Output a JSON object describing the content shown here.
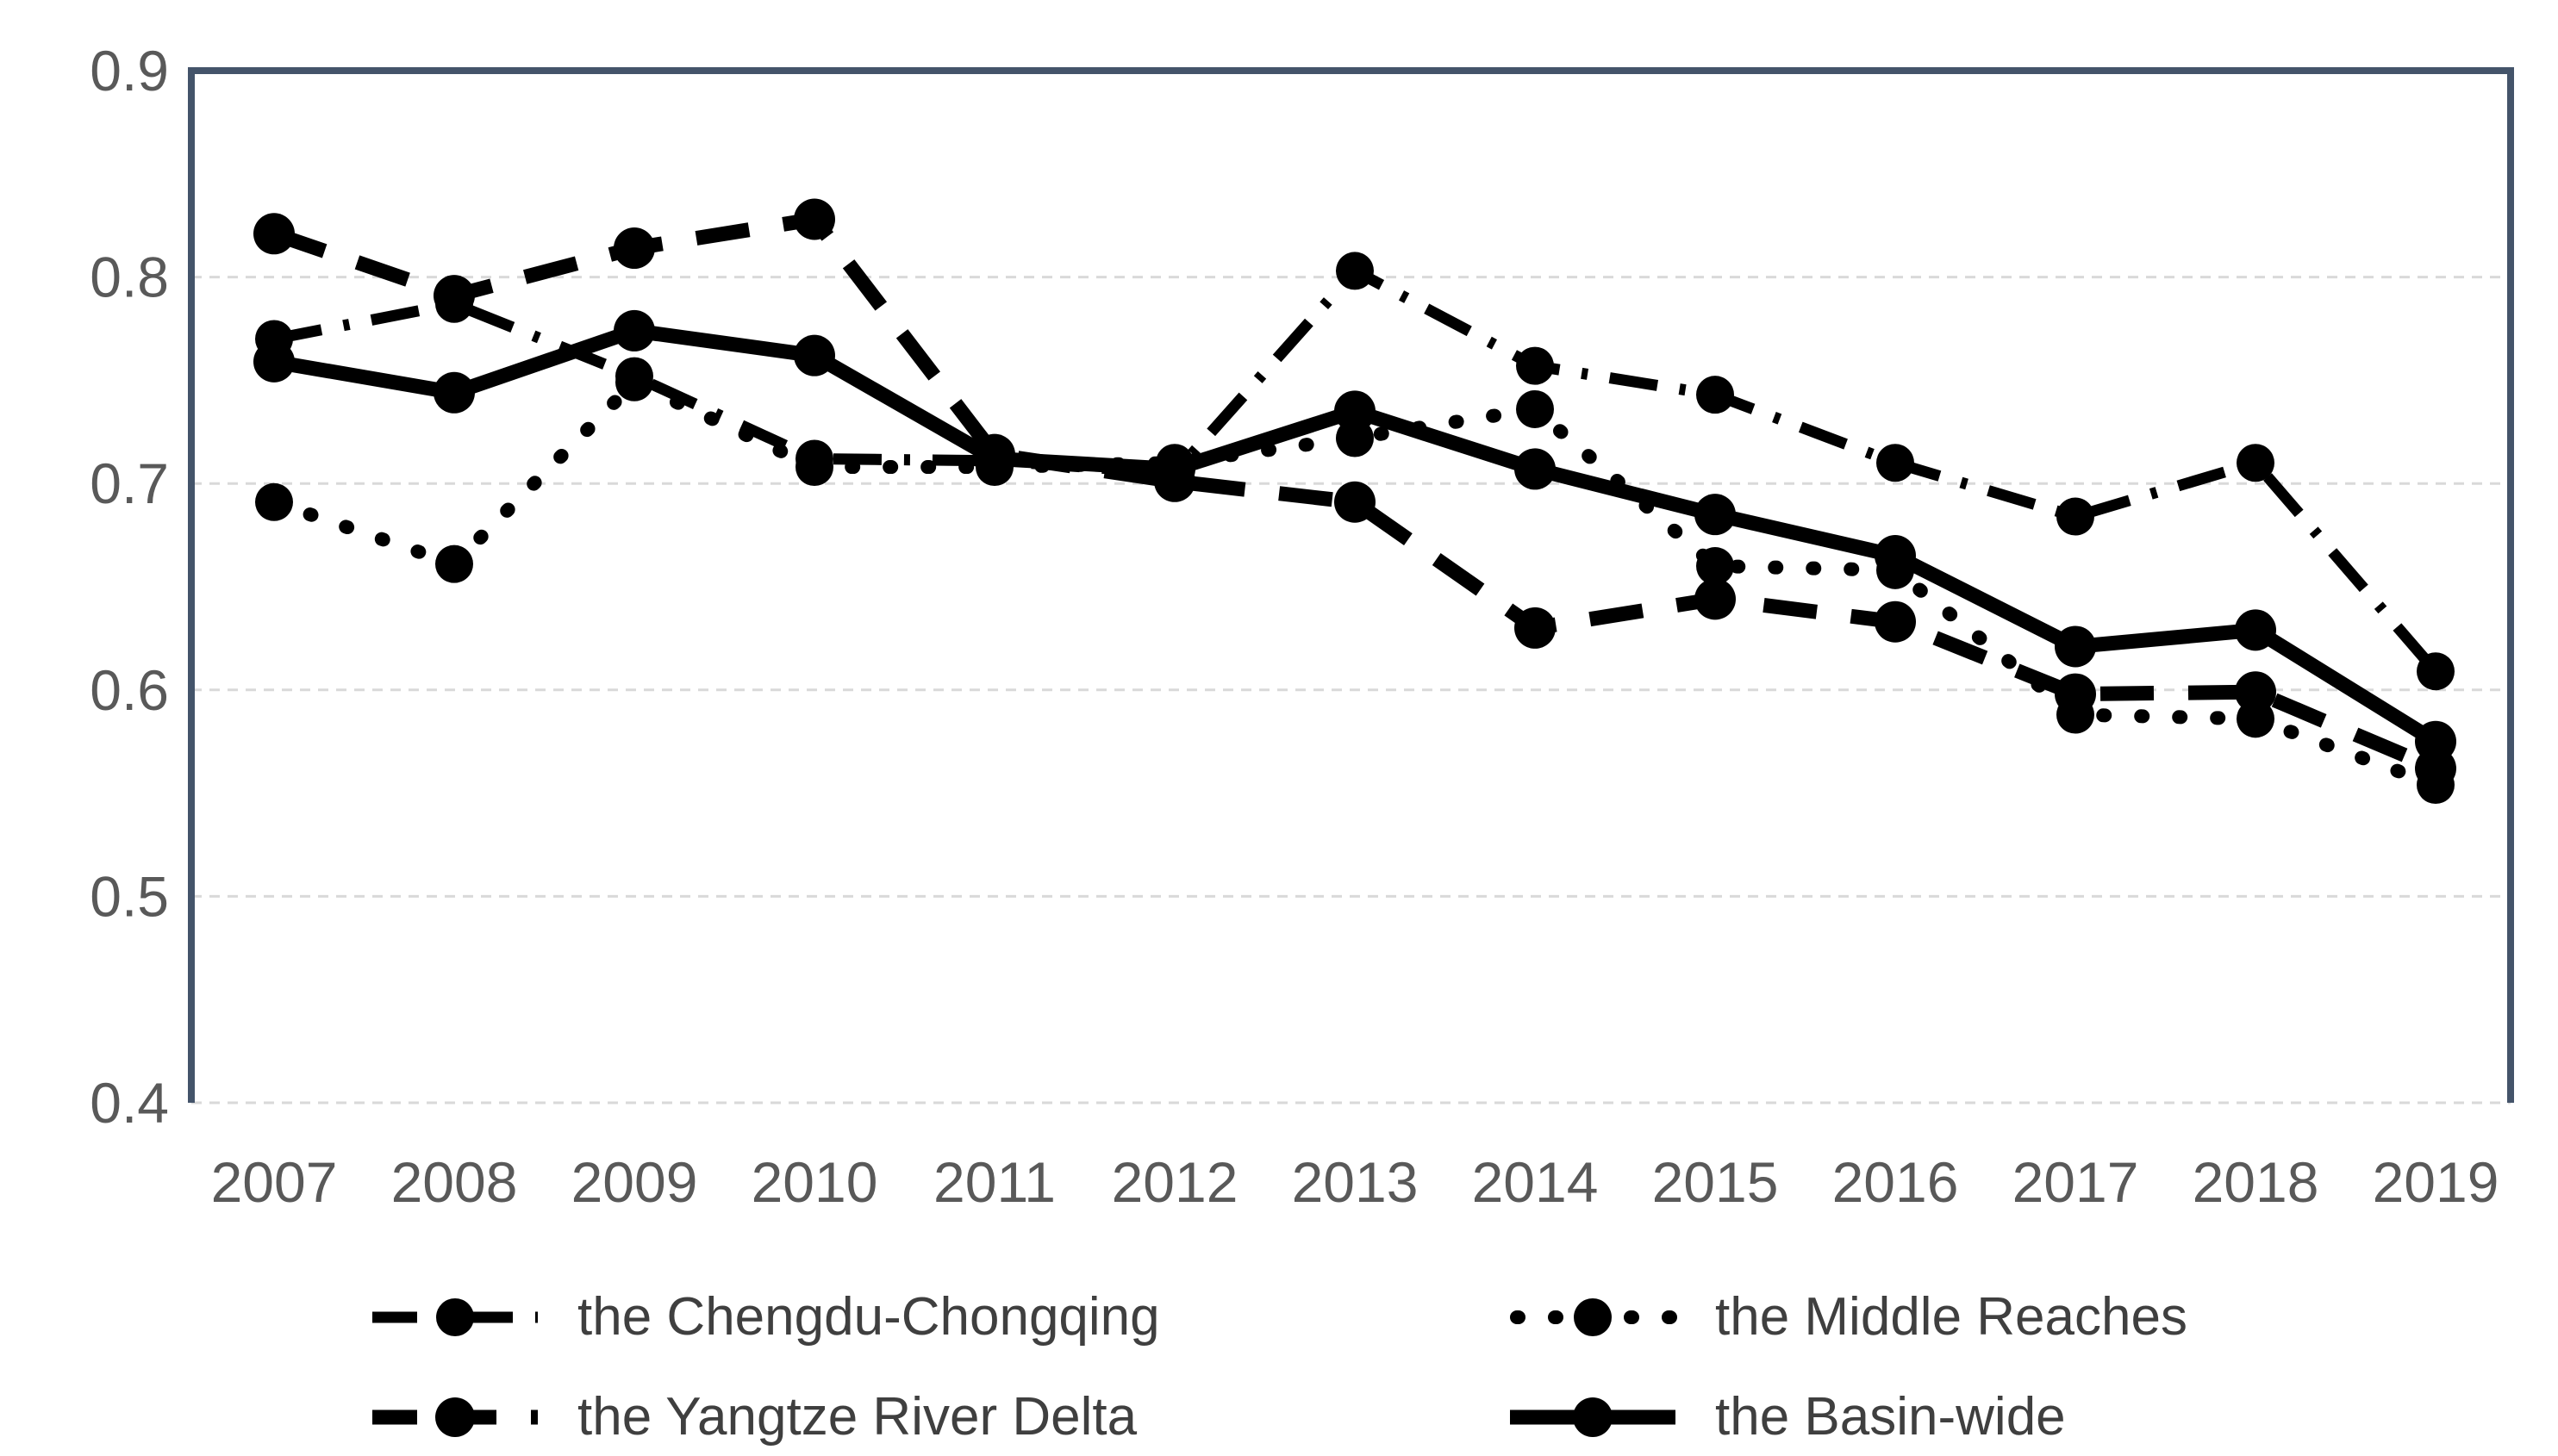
{
  "chart_data": {
    "type": "line",
    "title": "",
    "xlabel": "",
    "ylabel": "",
    "x": [
      "2007",
      "2008",
      "2009",
      "2010",
      "2011",
      "2012",
      "2013",
      "2014",
      "2015",
      "2016",
      "2017",
      "2018",
      "2019"
    ],
    "series": [
      {
        "name": "the Chengdu-Chongqing",
        "style": "dashdot",
        "color": "#000000",
        "values": [
          0.77,
          0.787,
          0.752,
          0.712,
          0.711,
          0.705,
          0.803,
          0.757,
          0.743,
          0.71,
          0.684,
          0.71,
          0.609
        ]
      },
      {
        "name": "the Middle Reaches",
        "style": "dotted",
        "color": "#000000",
        "values": [
          0.691,
          0.661,
          0.749,
          0.708,
          0.708,
          0.71,
          0.722,
          0.736,
          0.66,
          0.658,
          0.588,
          0.586,
          0.554
        ]
      },
      {
        "name": "the Yangtze River Delta",
        "style": "dashed",
        "color": "#000000",
        "values": [
          0.821,
          0.791,
          0.814,
          0.828,
          0.714,
          0.701,
          0.691,
          0.63,
          0.644,
          0.633,
          0.598,
          0.599,
          0.562
        ]
      },
      {
        "name": "the Basin-wide",
        "style": "solid",
        "color": "#000000",
        "values": [
          0.759,
          0.744,
          0.774,
          0.762,
          0.712,
          0.707,
          0.735,
          0.707,
          0.685,
          0.665,
          0.621,
          0.629,
          0.575
        ]
      }
    ],
    "ylim": [
      0.4,
      0.9
    ],
    "ytick_labels": [
      "0.9",
      "0.8",
      "0.7",
      "0.6",
      "0.5",
      "0.4"
    ],
    "yticks": [
      0.9,
      0.8,
      0.7,
      0.6,
      0.5,
      0.4
    ],
    "grid": true,
    "legend_position": "bottom",
    "colors": {
      "plot_border": "#44546A",
      "gridline": "#D9D9D9",
      "axis_label": "#595959",
      "legend_text": "#3F3F3F",
      "series": "#000000",
      "background": "#FFFFFF"
    }
  }
}
